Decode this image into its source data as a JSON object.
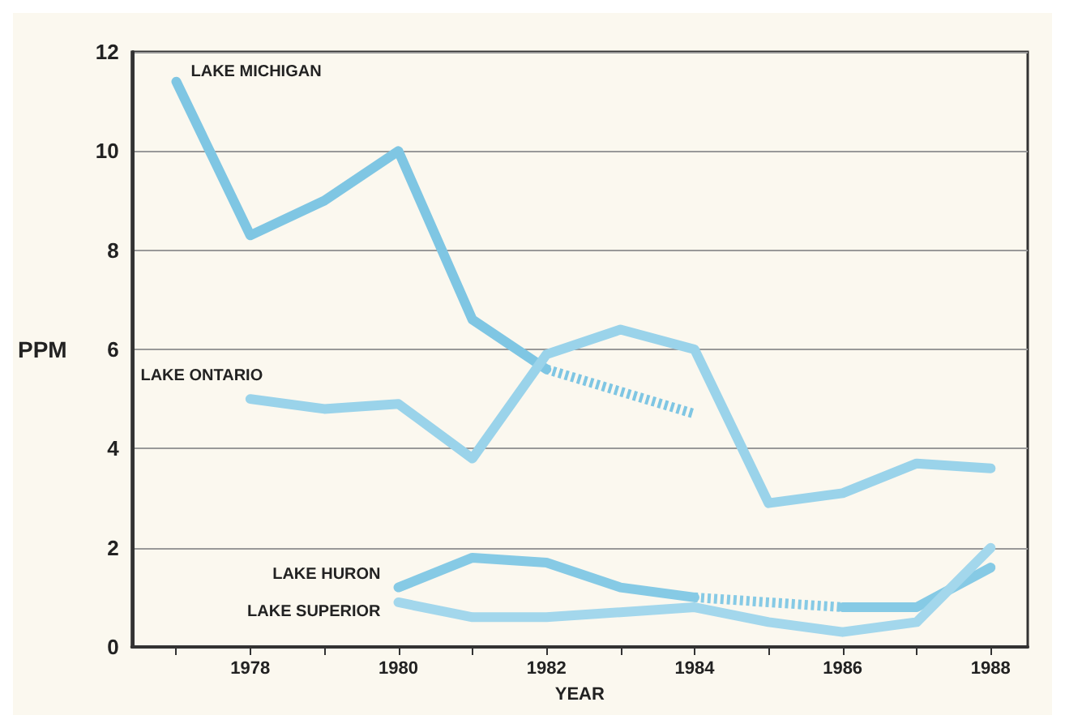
{
  "chart_data": {
    "type": "line",
    "xlabel": "YEAR",
    "ylabel": "PPM",
    "xlim": [
      1976.4,
      1988.5
    ],
    "xticks": [
      {
        "value": 1977,
        "label": null
      },
      1978,
      {
        "value": 1979,
        "label": null
      },
      1980,
      {
        "value": 1981,
        "label": null
      },
      1982,
      {
        "value": 1983,
        "label": null
      },
      1984,
      {
        "value": 1985,
        "label": null
      },
      1986,
      {
        "value": 1987,
        "label": null
      },
      1988
    ],
    "ylim": [
      0,
      12
    ],
    "yticks": [
      0,
      2,
      4,
      6,
      8,
      10,
      12
    ],
    "grid": "y",
    "marker": "none",
    "series": [
      {
        "name": "LAKE MICHIGAN",
        "color": "#7fc6e3",
        "x": [
          1977,
          1978,
          1979,
          1980,
          1981,
          1982
        ],
        "values": [
          11.4,
          8.3,
          9.0,
          10.0,
          6.6,
          5.6
        ]
      },
      {
        "color": "#7fc6e3",
        "line_style": "dashed",
        "x": [
          1982,
          1984
        ],
        "values": [
          5.6,
          4.7
        ]
      },
      {
        "name": "LAKE ONTARIO",
        "color": "#9ad3ea",
        "x": [
          1978,
          1979,
          1980,
          1981,
          1982,
          1983,
          1984,
          1985,
          1986,
          1987,
          1988
        ],
        "values": [
          5.0,
          4.8,
          4.9,
          3.8,
          5.9,
          6.4,
          6.0,
          2.9,
          3.1,
          3.7,
          3.6
        ]
      },
      {
        "name": "LAKE HURON",
        "color": "#86cae5",
        "x": [
          1980,
          1981,
          1982,
          1983,
          1984
        ],
        "values": [
          1.2,
          1.8,
          1.7,
          1.2,
          1.0
        ]
      },
      {
        "color": "#86cae5",
        "line_style": "dashed",
        "x": [
          1984,
          1986
        ],
        "values": [
          1.0,
          0.8
        ]
      },
      {
        "color": "#86cae5",
        "x": [
          1986,
          1987,
          1988
        ],
        "values": [
          0.8,
          0.8,
          1.6
        ]
      },
      {
        "name": "LAKE SUPERIOR",
        "color": "#a3d7ec",
        "x": [
          1980,
          1981,
          1982,
          1983,
          1984,
          1985,
          1986,
          1987,
          1988
        ],
        "values": [
          0.9,
          0.6,
          0.6,
          0.7,
          0.8,
          0.5,
          0.3,
          0.5,
          2.0
        ]
      }
    ]
  }
}
